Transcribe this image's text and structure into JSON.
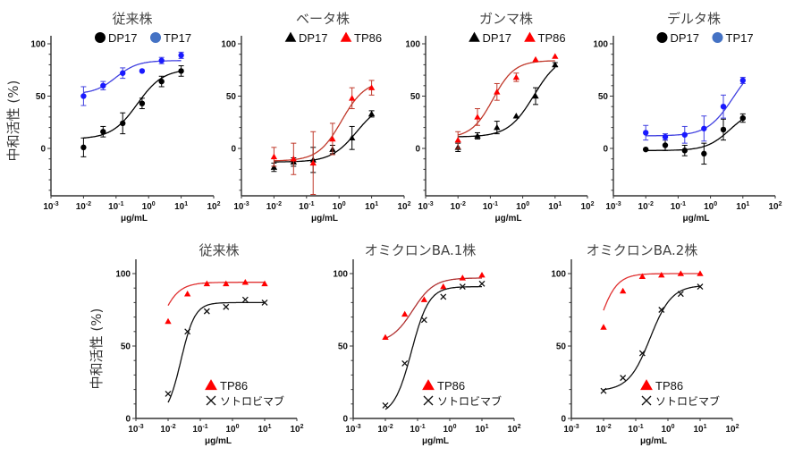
{
  "y_axis_label": "中和活性 (%)",
  "chart_data": [
    {
      "type": "scatter",
      "title": "従来株",
      "xlabel": "μg/mL",
      "ylabel": "中和活性 (%)",
      "xscale": "log",
      "xlim": [
        0.001,
        100
      ],
      "ylim": [
        -45,
        110
      ],
      "yticks": [
        0,
        50,
        100
      ],
      "xticks": [
        "10-3",
        "10-2",
        "10-1",
        "100",
        "101",
        "102"
      ],
      "legend_position": "top",
      "series": [
        {
          "name": "DP17",
          "marker": "circle",
          "color": "#000000",
          "curve_color": "#000000",
          "x": [
            0.01,
            0.04,
            0.16,
            0.63,
            2.5,
            10
          ],
          "y": [
            1,
            16,
            24,
            43,
            64,
            74
          ],
          "err": [
            9,
            5,
            10,
            5,
            5,
            5
          ],
          "fit": {
            "bottom": 9,
            "top": 76,
            "ec50": 0.45,
            "hill": 1.1
          }
        },
        {
          "name": "TP17",
          "marker": "circle",
          "color": "#1a1aff",
          "legend_color": "#4472c4",
          "curve_color": "#4040e0",
          "x": [
            0.01,
            0.04,
            0.16,
            0.63,
            2.5,
            10
          ],
          "y": [
            50,
            60,
            72,
            74,
            84,
            89
          ],
          "err": [
            9,
            4,
            5,
            0,
            3,
            3
          ],
          "fit": {
            "bottom": 52,
            "top": 84,
            "ec50": 0.1,
            "hill": 1.3
          }
        }
      ]
    },
    {
      "type": "scatter",
      "title": "ベータ株",
      "xlabel": "μg/mL",
      "ylabel": "",
      "xscale": "log",
      "xlim": [
        0.001,
        100
      ],
      "ylim": [
        -45,
        110
      ],
      "yticks": [
        0,
        50,
        100
      ],
      "xticks": [
        "10-3",
        "10-2",
        "10-1",
        "100",
        "101",
        "102"
      ],
      "legend_position": "top",
      "series": [
        {
          "name": "DP17",
          "marker": "triangle",
          "color": "#000000",
          "curve_color": "#000000",
          "x": [
            0.01,
            0.04,
            0.16,
            0.63,
            2.5,
            10
          ],
          "y": [
            -18,
            -13,
            -11,
            -1,
            10,
            33
          ],
          "err": [
            4,
            4,
            12,
            4,
            11,
            3
          ],
          "fit": {
            "bottom": -13,
            "top": 45,
            "ec50": 3.5,
            "hill": 1.1
          }
        },
        {
          "name": "TP86",
          "marker": "triangle",
          "color": "#ff0000",
          "curve_color": "#c0392b",
          "x": [
            0.01,
            0.04,
            0.16,
            0.63,
            2.5,
            10
          ],
          "y": [
            -8,
            -10,
            -14,
            9,
            48,
            58
          ],
          "err": [
            9,
            15,
            30,
            15,
            10,
            7
          ],
          "fit": {
            "bottom": -12,
            "top": 65,
            "ec50": 1.2,
            "hill": 1.2
          }
        }
      ]
    },
    {
      "type": "scatter",
      "title": "ガンマ株",
      "xlabel": "μg/mL",
      "ylabel": "",
      "xscale": "log",
      "xlim": [
        0.001,
        100
      ],
      "ylim": [
        -45,
        110
      ],
      "yticks": [
        0,
        50,
        100
      ],
      "xticks": [
        "10-3",
        "10-2",
        "10-1",
        "100",
        "101",
        "102"
      ],
      "legend_position": "top",
      "series": [
        {
          "name": "DP17",
          "marker": "triangle",
          "color": "#000000",
          "curve_color": "#000000",
          "x": [
            0.01,
            0.04,
            0.16,
            0.63,
            2.5,
            10
          ],
          "y": [
            1,
            12,
            20,
            31,
            50,
            80
          ],
          "err": [
            4,
            3,
            6,
            0,
            8,
            2
          ],
          "fit": {
            "bottom": 11,
            "top": 90,
            "ec50": 2.2,
            "hill": 1.1
          }
        },
        {
          "name": "TP86",
          "marker": "triangle",
          "color": "#ff0000",
          "curve_color": "#c0392b",
          "x": [
            0.01,
            0.04,
            0.16,
            0.63,
            2.5,
            10
          ],
          "y": [
            8,
            30,
            54,
            68,
            85,
            88
          ],
          "err": [
            8,
            8,
            8,
            4,
            0,
            0
          ],
          "fit": {
            "bottom": 10,
            "top": 84,
            "ec50": 0.12,
            "hill": 1.3
          }
        }
      ]
    },
    {
      "type": "scatter",
      "title": "デルタ株",
      "xlabel": "μg/mL",
      "ylabel": "",
      "xscale": "log",
      "xlim": [
        0.001,
        100
      ],
      "ylim": [
        -45,
        110
      ],
      "yticks": [
        0,
        50,
        100
      ],
      "xticks": [
        "10-3",
        "10-2",
        "10-1",
        "100",
        "101",
        "102"
      ],
      "legend_position": "top",
      "series": [
        {
          "name": "DP17",
          "marker": "circle",
          "color": "#000000",
          "curve_color": "#000000",
          "x": [
            0.01,
            0.04,
            0.16,
            0.63,
            2.5,
            10
          ],
          "y": [
            -1,
            3,
            -2,
            -5,
            18,
            29
          ],
          "err": [
            0,
            5,
            5,
            10,
            10,
            4
          ],
          "fit": {
            "bottom": -2,
            "top": 38,
            "ec50": 4.0,
            "hill": 1.2
          }
        },
        {
          "name": "TP17",
          "marker": "circle",
          "color": "#1a1aff",
          "legend_color": "#4472c4",
          "curve_color": "#4040e0",
          "x": [
            0.01,
            0.04,
            0.16,
            0.63,
            2.5,
            10
          ],
          "y": [
            15,
            11,
            13,
            19,
            40,
            65
          ],
          "err": [
            7,
            3,
            8,
            12,
            11,
            3
          ],
          "fit": {
            "bottom": 12,
            "top": 85,
            "ec50": 5.0,
            "hill": 1.1
          }
        }
      ]
    },
    {
      "type": "scatter",
      "title": "従来株",
      "xlabel": "μg/mL",
      "ylabel": "中和活性 (%)",
      "xscale": "log",
      "xlim": [
        0.001,
        100
      ],
      "ylim": [
        0,
        110
      ],
      "yticks": [
        0,
        50,
        100
      ],
      "xticks": [
        "10-3",
        "10-2",
        "10-1",
        "100",
        "101",
        "102"
      ],
      "legend_position": "bottom-right",
      "series": [
        {
          "name": "TP86",
          "marker": "triangle",
          "color": "#ff0000",
          "curve_color": "#e03030",
          "x": [
            0.01,
            0.04,
            0.16,
            0.63,
            2.5,
            10
          ],
          "y": [
            67,
            86,
            93,
            93,
            94,
            93
          ],
          "fit": {
            "bottom": 20,
            "top": 94,
            "ec50": 0.004,
            "hill": 1.4
          }
        },
        {
          "name": "ソトロビマブ",
          "marker": "x",
          "color": "#111111",
          "curve_color": "#111111",
          "x": [
            0.01,
            0.04,
            0.16,
            0.63,
            2.5,
            10
          ],
          "y": [
            17,
            60,
            74,
            77,
            82,
            80
          ],
          "fit": {
            "bottom": 0,
            "top": 80,
            "ec50": 0.025,
            "hill": 2.0
          }
        }
      ]
    },
    {
      "type": "scatter",
      "title": "オミクロンBA.1株",
      "xlabel": "μg/mL",
      "ylabel": "",
      "xscale": "log",
      "xlim": [
        0.001,
        100
      ],
      "ylim": [
        0,
        110
      ],
      "yticks": [
        0,
        50,
        100
      ],
      "xticks": [
        "10-3",
        "10-2",
        "10-1",
        "100",
        "101",
        "102"
      ],
      "legend_position": "bottom-right",
      "series": [
        {
          "name": "TP86",
          "marker": "triangle",
          "color": "#ff0000",
          "curve_color": "#b03030",
          "x": [
            0.01,
            0.04,
            0.16,
            0.63,
            2.5,
            10
          ],
          "y": [
            56,
            72,
            82,
            91,
            97,
            99
          ],
          "fit": {
            "bottom": 52,
            "top": 97,
            "ec50": 0.07,
            "hill": 1.3
          }
        },
        {
          "name": "ソトロビマブ",
          "marker": "x",
          "color": "#111111",
          "curve_color": "#111111",
          "x": [
            0.01,
            0.04,
            0.16,
            0.63,
            2.5,
            10
          ],
          "y": [
            9,
            38,
            68,
            84,
            91,
            93
          ],
          "fit": {
            "bottom": 2,
            "top": 91,
            "ec50": 0.065,
            "hill": 1.6
          }
        }
      ]
    },
    {
      "type": "scatter",
      "title": "オミクロンBA.2株",
      "xlabel": "μg/mL",
      "ylabel": "",
      "xscale": "log",
      "xlim": [
        0.001,
        100
      ],
      "ylim": [
        0,
        110
      ],
      "yticks": [
        0,
        50,
        100
      ],
      "xticks": [
        "10-3",
        "10-2",
        "10-1",
        "100",
        "101",
        "102"
      ],
      "legend_position": "bottom-right",
      "series": [
        {
          "name": "TP86",
          "marker": "triangle",
          "color": "#ff0000",
          "curve_color": "#e03030",
          "x": [
            0.01,
            0.04,
            0.16,
            0.63,
            2.5,
            10
          ],
          "y": [
            63,
            88,
            98,
            99,
            100,
            100
          ],
          "fit": {
            "bottom": 20,
            "top": 100,
            "ec50": 0.006,
            "hill": 1.5
          }
        },
        {
          "name": "ソトロビマブ",
          "marker": "x",
          "color": "#111111",
          "curve_color": "#111111",
          "x": [
            0.01,
            0.04,
            0.16,
            0.63,
            2.5,
            10
          ],
          "y": [
            19,
            28,
            45,
            75,
            86,
            91
          ],
          "fit": {
            "bottom": 19,
            "top": 92,
            "ec50": 0.28,
            "hill": 1.3
          }
        }
      ]
    }
  ]
}
